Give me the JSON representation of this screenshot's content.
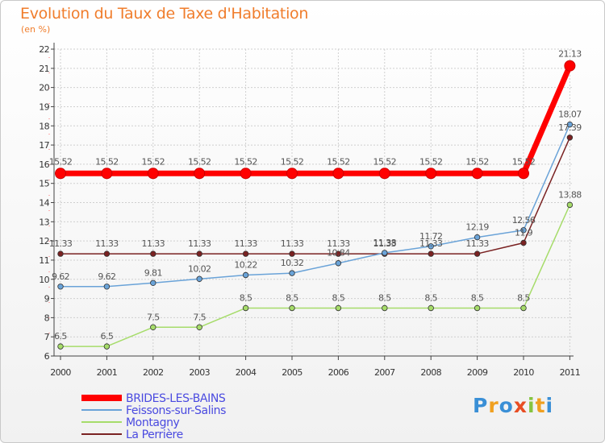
{
  "title": "Evolution du Taux de Taxe d'Habitation",
  "unit": "(en %)",
  "logo": {
    "letters": [
      {
        "ch": "P",
        "color": "#3a8fd6"
      },
      {
        "ch": "r",
        "color": "#f0a020"
      },
      {
        "ch": "o",
        "color": "#3a8fd6"
      },
      {
        "ch": "x",
        "color": "#e84d23"
      },
      {
        "ch": "i",
        "color": "#86c440"
      },
      {
        "ch": "t",
        "color": "#f0a020"
      },
      {
        "ch": "i",
        "color": "#3a8fd6"
      }
    ]
  },
  "chart_data": {
    "type": "line",
    "title": "Evolution du Taux de Taxe d'Habitation",
    "ylabel": "(en %)",
    "xlabel": "",
    "x": [
      "2000",
      "2001",
      "2002",
      "2003",
      "2004",
      "2005",
      "2006",
      "2007",
      "2008",
      "2009",
      "2010",
      "2011"
    ],
    "ylim": [
      6,
      22
    ],
    "yticks": [
      6,
      7,
      8,
      9,
      10,
      11,
      12,
      13,
      14,
      15,
      16,
      17,
      18,
      19,
      20,
      21,
      22
    ],
    "grid": true,
    "legend_position": "bottom-left",
    "series": [
      {
        "name": "BRIDES-LES-BAINS",
        "color": "#ff0000",
        "labelColor": "#ff0000",
        "values": [
          15.52,
          15.52,
          15.52,
          15.52,
          15.52,
          15.52,
          15.52,
          15.52,
          15.52,
          15.52,
          15.52,
          21.13
        ],
        "labels": [
          "15.52",
          "15.52",
          "15.52",
          "15.52",
          "15.52",
          "15.52",
          "15.52",
          "15.52",
          "15.52",
          "15.52",
          "15.52",
          "21.13"
        ]
      },
      {
        "name": "Feissons-sur-Salins",
        "color": "#6aa3d8",
        "labelColor": "#4472c4",
        "values": [
          9.62,
          9.62,
          9.81,
          10.02,
          10.22,
          10.32,
          10.84,
          11.38,
          11.72,
          12.19,
          12.56,
          18.07
        ],
        "labels": [
          "9.62",
          "9.62",
          "9.81",
          "10.02",
          "10.22",
          "10.32",
          "10.84",
          "11.38",
          "11.72",
          "12.19",
          "12.56",
          "18.07"
        ]
      },
      {
        "name": "Montagny",
        "color": "#a6dc6a",
        "labelColor": "#7fbf3a",
        "values": [
          6.5,
          6.5,
          7.5,
          7.5,
          8.5,
          8.5,
          8.5,
          8.5,
          8.5,
          8.5,
          8.5,
          13.88
        ],
        "labels": [
          "6.5",
          "6.5",
          "7.5",
          "7.5",
          "8.5",
          "8.5",
          "8.5",
          "8.5",
          "8.5",
          "8.5",
          "8.5",
          "13.88"
        ]
      },
      {
        "name": "La Perrière",
        "color": "#7a2222",
        "labelColor": "#7a2222",
        "values": [
          11.33,
          11.33,
          11.33,
          11.33,
          11.33,
          11.33,
          11.33,
          11.33,
          11.33,
          11.33,
          11.9,
          17.39
        ],
        "labels": [
          "11.33",
          "11.33",
          "11.33",
          "11.33",
          "11.33",
          "11.33",
          "11.33",
          "11.33",
          "11.33",
          "11.33",
          "11.9",
          "17.39"
        ]
      }
    ]
  }
}
